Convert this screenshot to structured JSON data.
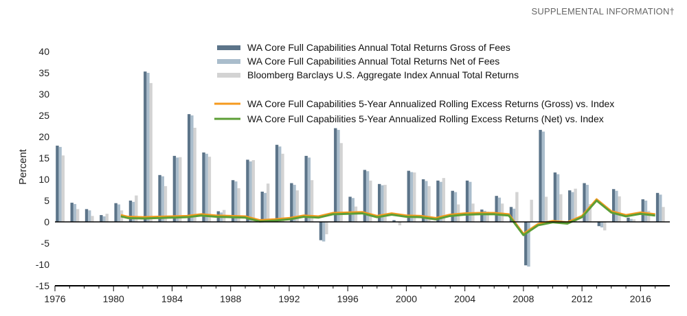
{
  "header": {
    "note": "SUPPLEMENTAL INFORMATION†"
  },
  "chart_data": {
    "type": "bar",
    "title": "",
    "xlabel": "",
    "ylabel": "Percent",
    "ylim": [
      -15,
      40
    ],
    "yticks": [
      40,
      35,
      30,
      25,
      20,
      15,
      10,
      5,
      0,
      -5,
      -10,
      -15
    ],
    "xlim": [
      1976,
      2018
    ],
    "xticks": [
      1976,
      1980,
      1984,
      1988,
      1992,
      1996,
      2000,
      2004,
      2008,
      2012,
      2016
    ],
    "grid": false,
    "legend_position": "top-center",
    "colors": {
      "gross": "#5c7489",
      "net": "#aabdcc",
      "index": "#d3d3d3",
      "excess_gross": "#f59a1e",
      "excess_net": "#5c9e35"
    },
    "bar_series": [
      {
        "name": "WA Core Full Capabilities Annual Total Returns Gross of Fees",
        "key": "gross"
      },
      {
        "name": "WA Core Full Capabilities Annual Total Returns Net of Fees",
        "key": "net"
      },
      {
        "name": "Bloomberg Barclays U.S. Aggregate Index Annual Total Returns",
        "key": "index"
      }
    ],
    "line_series": [
      {
        "name": "WA Core Full Capabilities 5-Year Annualized Rolling Excess Returns (Gross) vs. Index",
        "key": "excess_gross"
      },
      {
        "name": "WA Core Full Capabilities 5-Year Annualized Rolling Excess Returns (Net) vs. Index",
        "key": "excess_net"
      }
    ],
    "years": [
      1976,
      1977,
      1978,
      1979,
      1980,
      1981,
      1982,
      1983,
      1984,
      1985,
      1986,
      1987,
      1988,
      1989,
      1990,
      1991,
      1992,
      1993,
      1994,
      1995,
      1996,
      1997,
      1998,
      1999,
      2000,
      2001,
      2002,
      2003,
      2004,
      2005,
      2006,
      2007,
      2008,
      2009,
      2010,
      2011,
      2012,
      2013,
      2014,
      2015,
      2016,
      2017
    ],
    "gross": [
      17.9,
      4.5,
      3.0,
      1.6,
      4.4,
      5.0,
      35.3,
      11.0,
      15.5,
      25.3,
      16.3,
      2.5,
      9.8,
      14.6,
      7.1,
      18.1,
      9.1,
      15.5,
      -4.3,
      22.0,
      5.9,
      12.2,
      8.9,
      0.4,
      12.0,
      10.0,
      9.7,
      7.3,
      9.7,
      2.9,
      6.1,
      3.5,
      -10.2,
      21.6,
      11.6,
      7.4,
      9.1,
      -1.0,
      7.7,
      1.0,
      5.3,
      6.8
    ],
    "net": [
      17.6,
      4.2,
      2.7,
      1.3,
      4.1,
      4.7,
      35.0,
      10.7,
      15.1,
      25.0,
      16.0,
      2.2,
      9.5,
      14.2,
      6.8,
      17.7,
      8.7,
      15.1,
      -4.6,
      21.6,
      5.6,
      11.9,
      8.6,
      0.1,
      11.7,
      9.6,
      9.4,
      7.0,
      9.4,
      2.6,
      5.7,
      3.1,
      -10.5,
      21.2,
      11.2,
      7.0,
      8.7,
      -1.3,
      7.3,
      0.7,
      5.0,
      6.4
    ],
    "index": [
      15.6,
      3.0,
      1.4,
      1.9,
      2.7,
      6.2,
      32.6,
      8.4,
      15.2,
      22.1,
      15.3,
      2.8,
      7.9,
      14.5,
      9.0,
      16.0,
      7.4,
      9.8,
      -2.9,
      18.5,
      3.6,
      9.7,
      8.7,
      -0.8,
      11.6,
      8.4,
      10.3,
      4.1,
      4.3,
      2.4,
      4.3,
      7.0,
      5.2,
      5.9,
      6.5,
      7.8,
      4.2,
      -2.0,
      6.0,
      0.6,
      2.6,
      3.5
    ],
    "excess_x": [
      1980.5,
      1981,
      1982,
      1983,
      1984,
      1985,
      1986,
      1987,
      1988,
      1989,
      1990,
      1991,
      1992,
      1993,
      1994,
      1995,
      1996,
      1997,
      1998,
      1999,
      2000,
      2001,
      2002,
      2003,
      2004,
      2005,
      2006,
      2007,
      2008,
      2009,
      2010,
      2011,
      2012,
      2013,
      2014,
      2015,
      2016,
      2017
    ],
    "excess_gross": [
      1.6,
      1.2,
      1.1,
      1.2,
      1.3,
      1.4,
      1.8,
      1.5,
      1.4,
      1.3,
      0.4,
      0.6,
      0.9,
      1.5,
      1.3,
      2.1,
      2.2,
      2.3,
      1.4,
      2.0,
      1.5,
      1.4,
      0.9,
      1.7,
      2.0,
      2.1,
      2.1,
      1.8,
      -2.8,
      -0.5,
      0.2,
      -0.1,
      1.4,
      5.3,
      2.5,
      1.6,
      2.2,
      1.8
    ],
    "excess_net": [
      1.3,
      0.9,
      0.8,
      0.9,
      1.0,
      1.1,
      1.5,
      1.2,
      1.1,
      1.0,
      0.1,
      0.3,
      0.6,
      1.2,
      1.0,
      1.8,
      1.9,
      2.0,
      1.1,
      1.7,
      1.2,
      1.1,
      0.6,
      1.4,
      1.7,
      1.8,
      1.8,
      1.5,
      -3.1,
      -0.8,
      -0.1,
      -0.4,
      1.1,
      5.0,
      2.2,
      1.3,
      1.9,
      1.5
    ]
  }
}
